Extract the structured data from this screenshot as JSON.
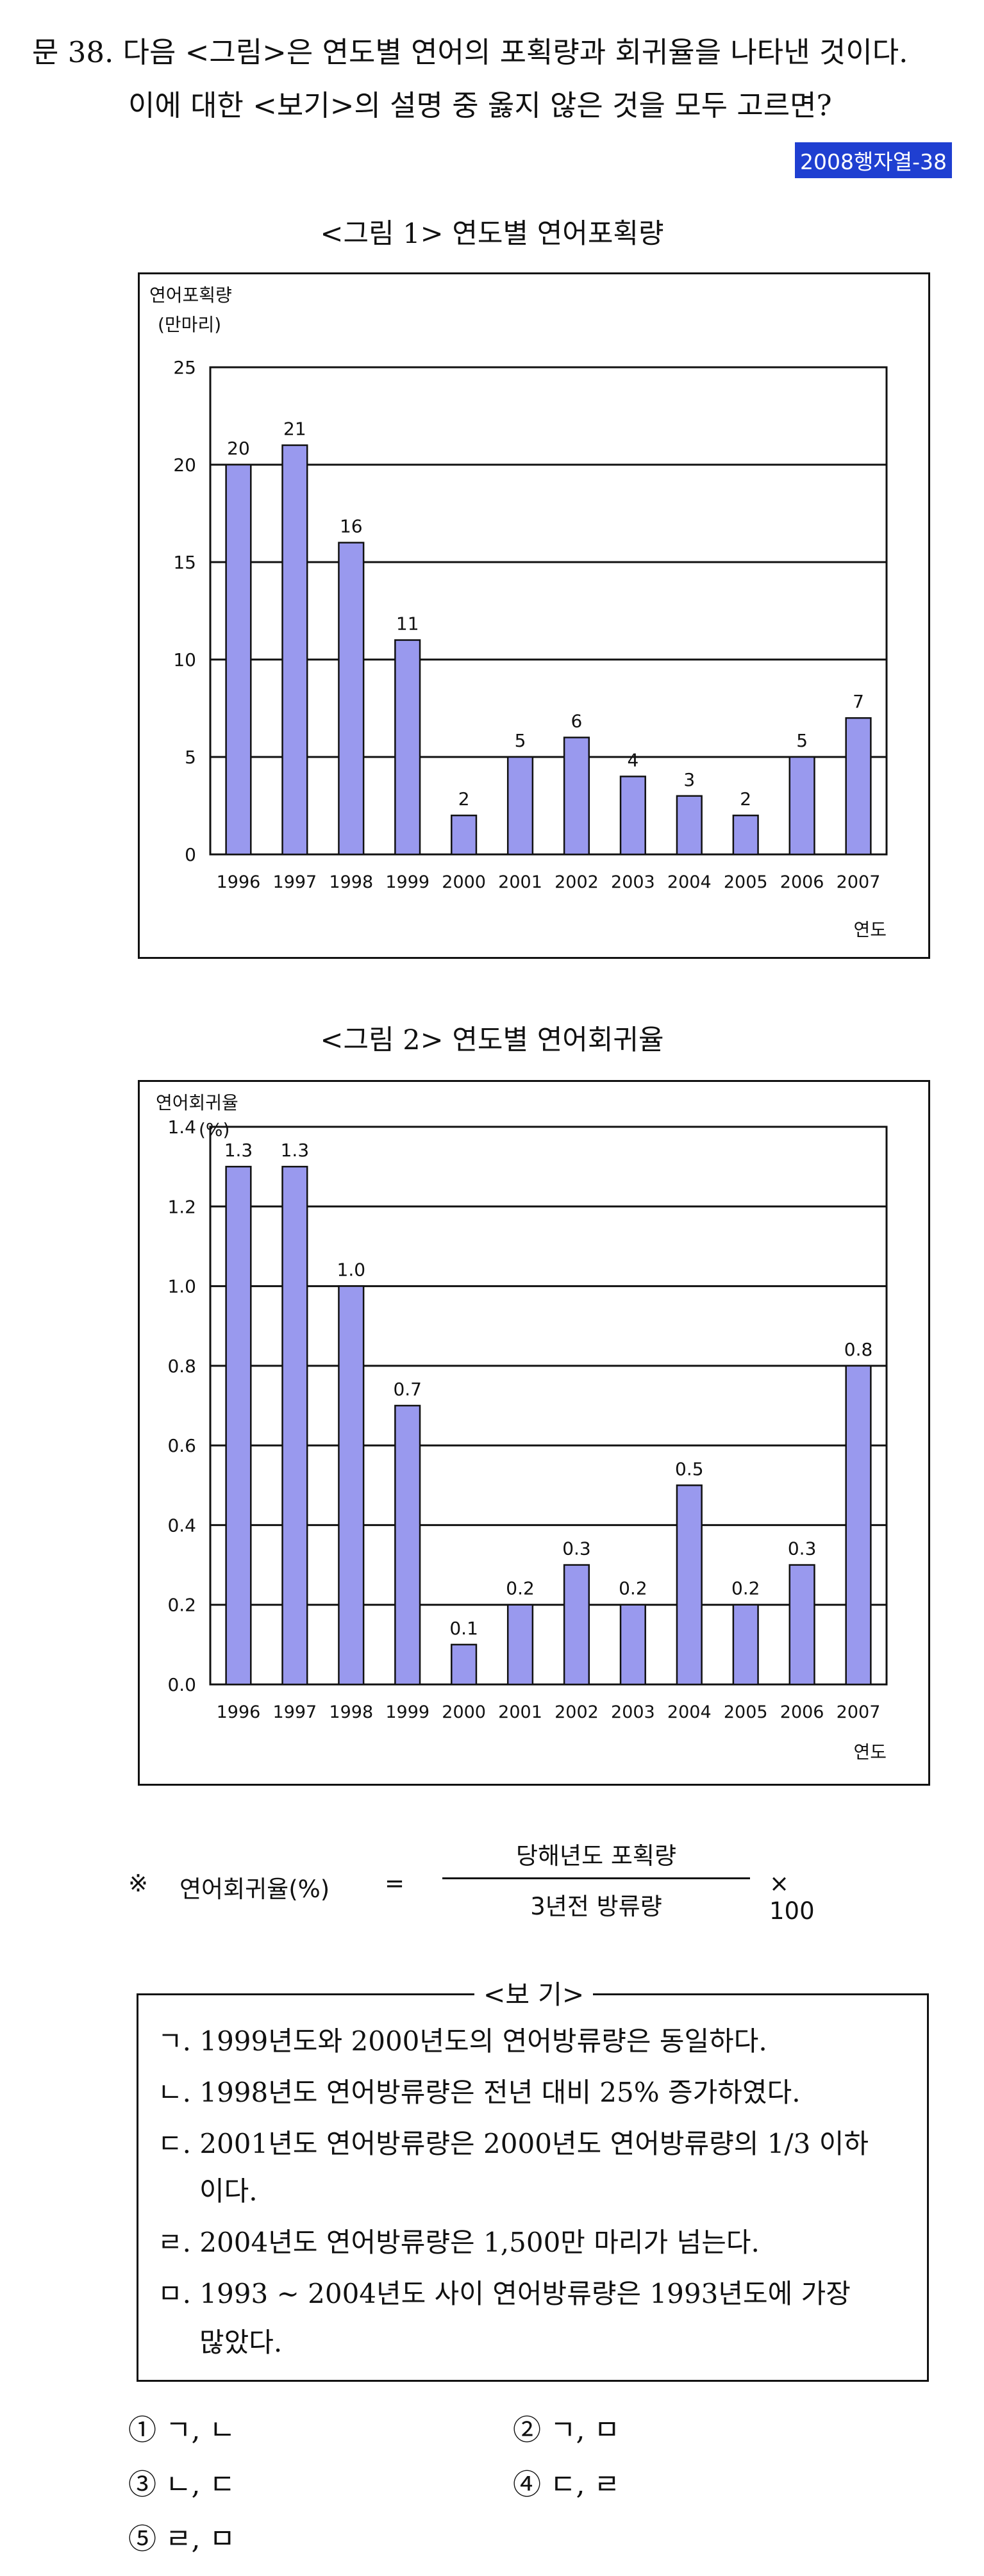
{
  "question": {
    "line1": "문 38. 다음 <그림>은 연도별 연어의 포획량과 회귀율을 나타낸 것이다.",
    "line2": "이에 대한 <보기>의 설명 중 옳지 않은 것을 모두 고르면?",
    "tag": "2008행자열-38"
  },
  "figure1": {
    "caption": "<그림 1> 연도별 연어포획량"
  },
  "figure2": {
    "caption": "<그림 2> 연도별 연어회귀율"
  },
  "chart_data": [
    {
      "type": "bar",
      "ylabel_line1": "연어포획량",
      "ylabel_line2": "(만마리)",
      "xlabel": "연도",
      "categories": [
        "1996",
        "1997",
        "1998",
        "1999",
        "2000",
        "2001",
        "2002",
        "2003",
        "2004",
        "2005",
        "2006",
        "2007"
      ],
      "values": [
        20,
        21,
        16,
        11,
        2,
        5,
        6,
        4,
        3,
        2,
        5,
        7
      ],
      "value_labels": [
        "20",
        "21",
        "16",
        "11",
        "2",
        "5",
        "6",
        "4",
        "3",
        "2",
        "5",
        "7"
      ],
      "yticks": [
        "0",
        "5",
        "10",
        "15",
        "20",
        "25"
      ],
      "ylim": [
        0,
        25
      ],
      "grid": true,
      "bar_color": "#9999ee"
    },
    {
      "type": "bar",
      "ylabel_line1": "연어회귀율",
      "ylabel_line2": "(%)",
      "xlabel": "연도",
      "categories": [
        "1996",
        "1997",
        "1998",
        "1999",
        "2000",
        "2001",
        "2002",
        "2003",
        "2004",
        "2005",
        "2006",
        "2007"
      ],
      "values": [
        1.3,
        1.3,
        1.0,
        0.7,
        0.1,
        0.2,
        0.3,
        0.2,
        0.5,
        0.2,
        0.3,
        0.8
      ],
      "value_labels": [
        "1.3",
        "1.3",
        "1.0",
        "0.7",
        "0.1",
        "0.2",
        "0.3",
        "0.2",
        "0.5",
        "0.2",
        "0.3",
        "0.8"
      ],
      "yticks": [
        "0.0",
        "0.2",
        "0.4",
        "0.6",
        "0.8",
        "1.0",
        "1.2",
        "1.4"
      ],
      "ylim": [
        0,
        1.4
      ],
      "grid": true,
      "bar_color": "#9999ee"
    }
  ],
  "note": {
    "mark": "※",
    "lhs": "연어회귀율(%)",
    "eq": "=",
    "numerator": "당해년도 포획량",
    "denominator": "3년전 방류량",
    "multiplier": "× 100"
  },
  "bogi": {
    "label": "<보 기>",
    "items": [
      "ㄱ. 1999년도와 2000년도의 연어방류량은 동일하다.",
      "ㄴ. 1998년도 연어방류량은 전년 대비 25% 증가하였다.",
      "ㄷ. 2001년도 연어방류량은 2000년도 연어방류량의 1/3 이하",
      "    이다.",
      "ㄹ. 2004년도 연어방류량은 1,500만 마리가 넘는다.",
      "ㅁ. 1993 ~ 2004년도 사이 연어방류량은 1993년도에 가장",
      "    많았다."
    ]
  },
  "choices": [
    "① ㄱ, ㄴ",
    "② ㄱ, ㅁ",
    "③ ㄴ, ㄷ",
    "④ ㄷ, ㄹ",
    "⑤ ㄹ, ㅁ"
  ]
}
